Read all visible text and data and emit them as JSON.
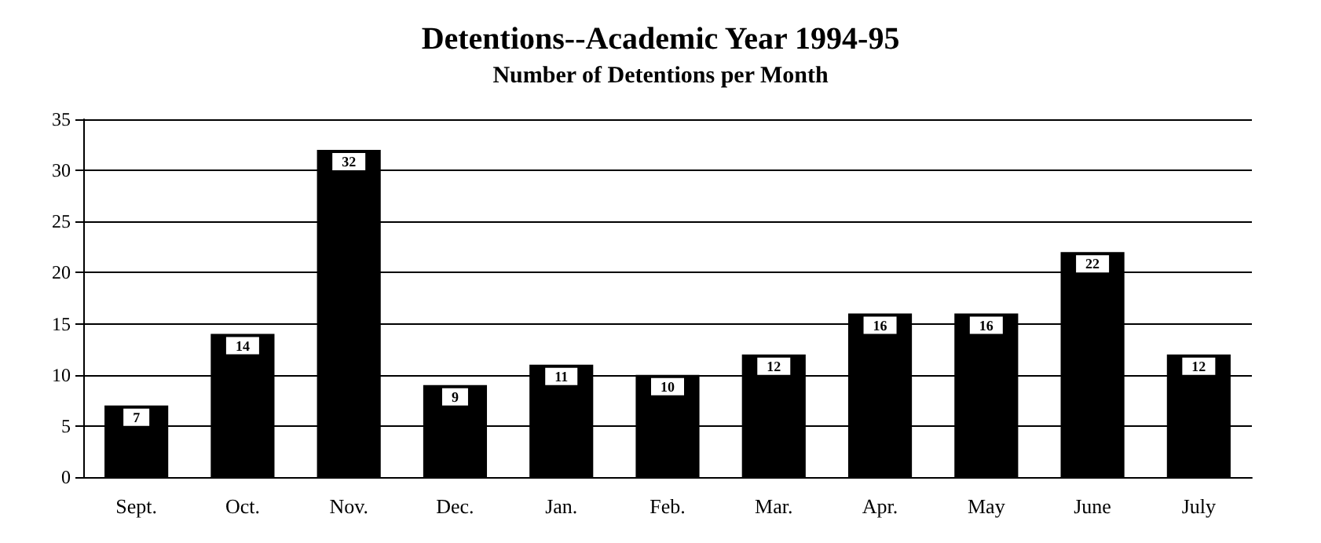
{
  "chart_data": {
    "type": "bar",
    "title": "Detentions--Academic Year 1994-95",
    "subtitle": "Number of Detentions per Month",
    "categories": [
      "Sept.",
      "Oct.",
      "Nov.",
      "Dec.",
      "Jan.",
      "Feb.",
      "Mar.",
      "Apr.",
      "May",
      "June",
      "July"
    ],
    "values": [
      7,
      14,
      32,
      9,
      11,
      10,
      12,
      16,
      16,
      22,
      12
    ],
    "color": "#000000",
    "ylim": [
      0,
      35
    ],
    "yticks": [
      0,
      5,
      10,
      15,
      20,
      25,
      30,
      35
    ],
    "grid": "y",
    "data_labels": true
  }
}
